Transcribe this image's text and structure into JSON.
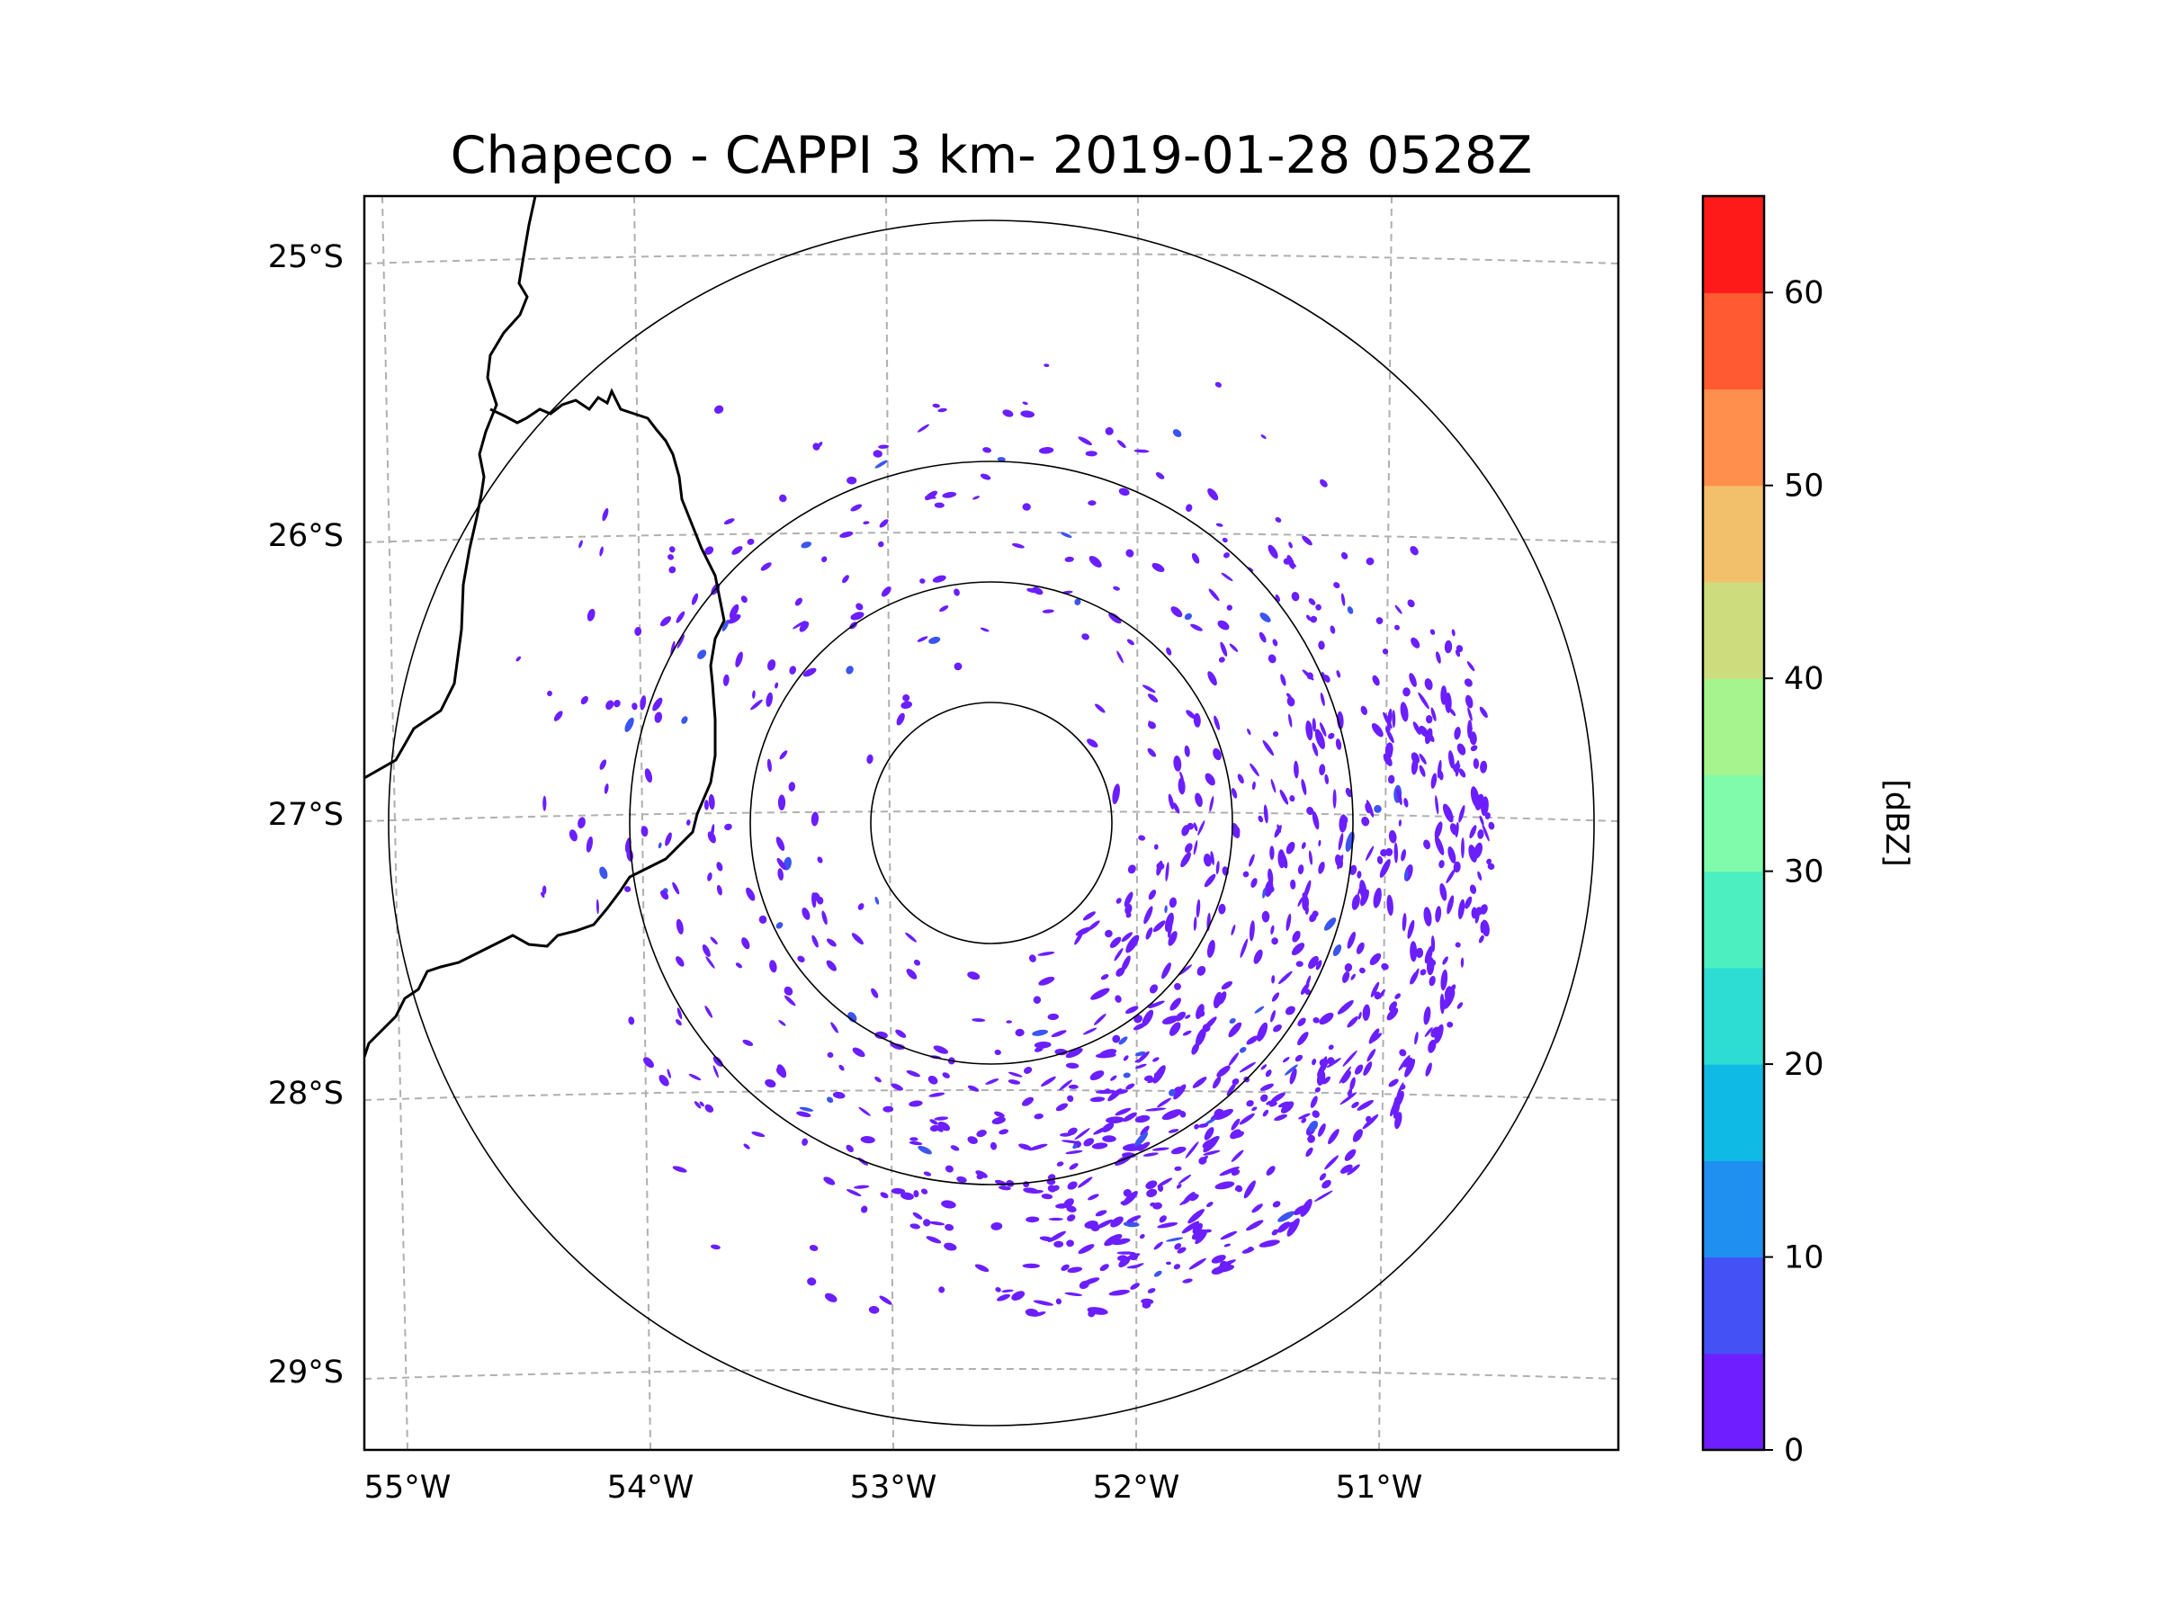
{
  "title": "Chapeco - CAPPI 3 km- 2019-01-28 0528Z",
  "colors": {
    "echo": "#6b1eff",
    "echo_strong": "#3b55f0",
    "grid": "#b0b0b0",
    "coast": "#000000",
    "range_ring": "#000000"
  },
  "map": {
    "lon_labels": [
      "55°W",
      "54°W",
      "53°W",
      "52°W",
      "51°W"
    ],
    "lat_labels": [
      "25°S",
      "26°S",
      "27°S",
      "28°S",
      "29°S"
    ],
    "radar_site": {
      "lon": -52.6,
      "lat": -27.03
    },
    "range_rings_km": [
      50,
      100,
      150,
      250
    ]
  },
  "colorbar": {
    "label": "[dBZ]",
    "tick_labels": [
      "0",
      "10",
      "20",
      "30",
      "40",
      "50",
      "60"
    ],
    "bins": [
      {
        "min": 0,
        "max": 5,
        "color": "#6f1eff"
      },
      {
        "min": 5,
        "max": 10,
        "color": "#4351f5"
      },
      {
        "min": 10,
        "max": 15,
        "color": "#1f8ff0"
      },
      {
        "min": 15,
        "max": 20,
        "color": "#0fbbe4"
      },
      {
        "min": 20,
        "max": 25,
        "color": "#2ddcd2"
      },
      {
        "min": 25,
        "max": 30,
        "color": "#4cf0c0"
      },
      {
        "min": 30,
        "max": 35,
        "color": "#80fbab"
      },
      {
        "min": 35,
        "max": 40,
        "color": "#a5f48e"
      },
      {
        "min": 40,
        "max": 45,
        "color": "#cddc7d"
      },
      {
        "min": 45,
        "max": 50,
        "color": "#f2bf6b"
      },
      {
        "min": 50,
        "max": 55,
        "color": "#ff8f4d"
      },
      {
        "min": 55,
        "max": 60,
        "color": "#ff5a32"
      },
      {
        "min": 60,
        "max": 65,
        "color": "#ff1a1a"
      }
    ]
  }
}
